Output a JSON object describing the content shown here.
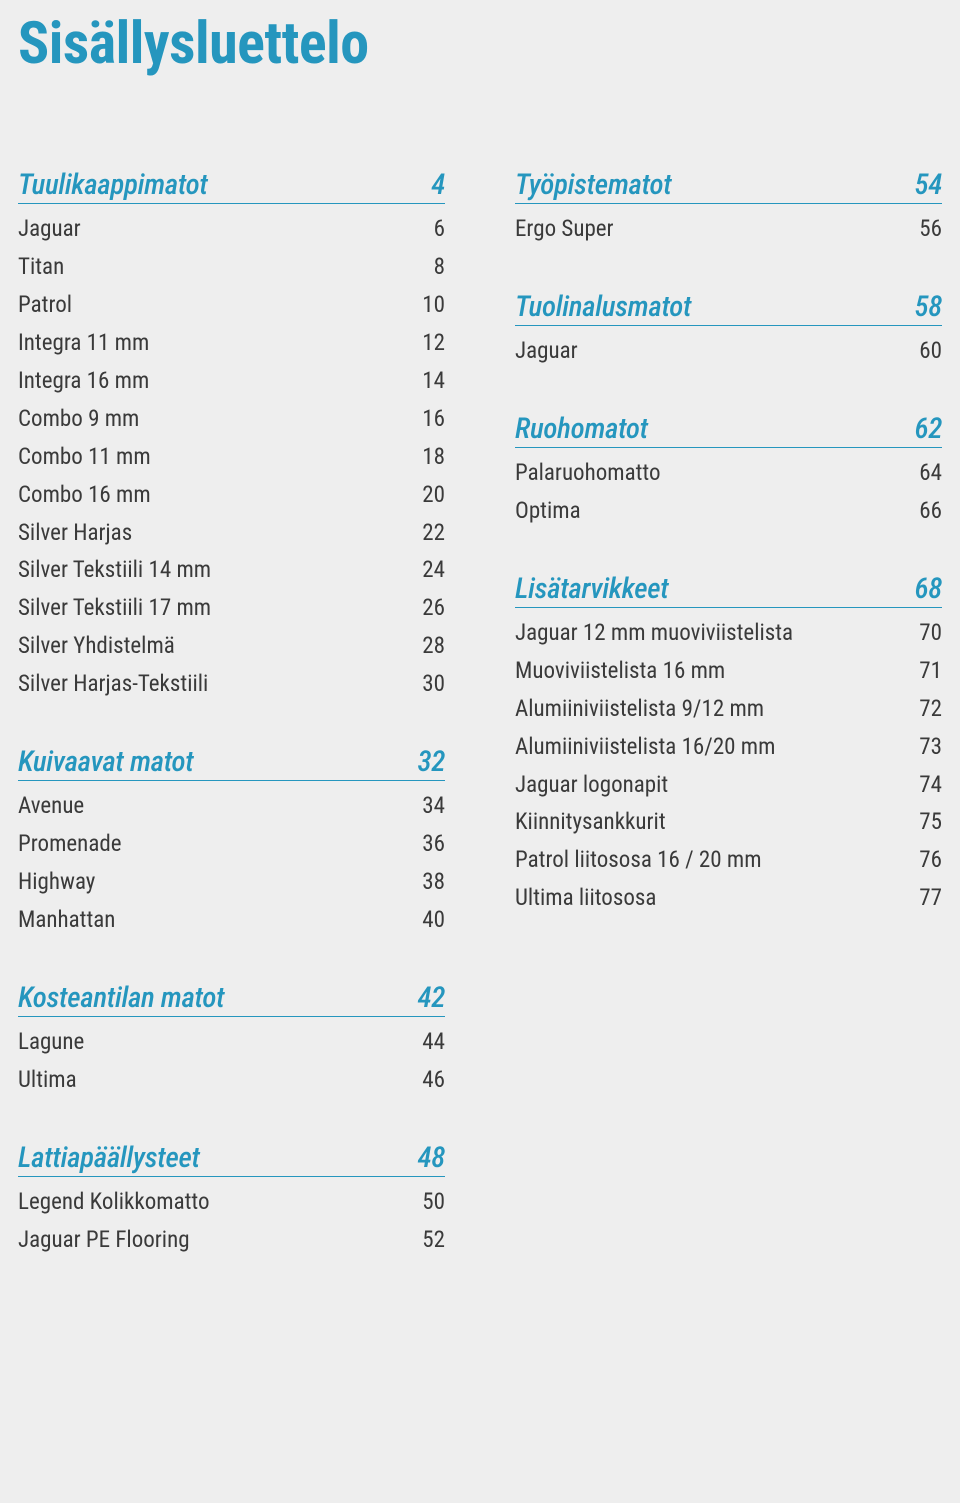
{
  "title": "Sisällysluettelo",
  "columns": [
    {
      "sections": [
        {
          "title": "Tuulikaappimatot",
          "page": "4",
          "entries": [
            {
              "label": "Jaguar",
              "page": "6"
            },
            {
              "label": "Titan",
              "page": "8"
            },
            {
              "label": "Patrol",
              "page": "10"
            },
            {
              "label": "Integra 11 mm",
              "page": "12"
            },
            {
              "label": "Integra 16 mm",
              "page": "14"
            },
            {
              "label": "Combo 9 mm",
              "page": "16"
            },
            {
              "label": "Combo 11 mm",
              "page": "18"
            },
            {
              "label": "Combo 16 mm",
              "page": "20"
            },
            {
              "label": "Silver Harjas",
              "page": "22"
            },
            {
              "label": "Silver Tekstiili 14 mm",
              "page": "24"
            },
            {
              "label": "Silver Tekstiili 17 mm",
              "page": "26"
            },
            {
              "label": "Silver Yhdistelmä",
              "page": "28"
            },
            {
              "label": "Silver Harjas-Tekstiili",
              "page": "30"
            }
          ]
        },
        {
          "title": "Kuivaavat matot",
          "page": "32",
          "entries": [
            {
              "label": "Avenue",
              "page": "34"
            },
            {
              "label": "Promenade",
              "page": "36"
            },
            {
              "label": "Highway",
              "page": "38"
            },
            {
              "label": "Manhattan",
              "page": "40"
            }
          ]
        },
        {
          "title": "Kosteantilan matot",
          "page": "42",
          "entries": [
            {
              "label": "Lagune",
              "page": "44"
            },
            {
              "label": "Ultima",
              "page": "46"
            }
          ]
        },
        {
          "title": "Lattiapäällysteet",
          "page": "48",
          "entries": [
            {
              "label": "Legend Kolikkomatto",
              "page": "50"
            },
            {
              "label": "Jaguar PE Flooring",
              "page": "52"
            }
          ]
        }
      ]
    },
    {
      "sections": [
        {
          "title": "Työpistematot",
          "page": "54",
          "entries": [
            {
              "label": "Ergo Super",
              "page": "56"
            }
          ]
        },
        {
          "title": "Tuolinalusmatot",
          "page": "58",
          "entries": [
            {
              "label": "Jaguar",
              "page": "60"
            }
          ]
        },
        {
          "title": "Ruohomatot",
          "page": "62",
          "entries": [
            {
              "label": "Palaruohomatto",
              "page": "64"
            },
            {
              "label": "Optima",
              "page": "66"
            }
          ]
        },
        {
          "title": "Lisätarvikkeet",
          "page": "68",
          "entries": [
            {
              "label": "Jaguar 12 mm muoviviistelista",
              "page": "70"
            },
            {
              "label": "Muoviviistelista 16 mm",
              "page": "71"
            },
            {
              "label": "Alumiiniviistelista 9/12 mm",
              "page": "72"
            },
            {
              "label": "Alumiiniviistelista 16/20 mm",
              "page": "73"
            },
            {
              "label": "Jaguar logonapit",
              "page": "74"
            },
            {
              "label": "Kiinnitysankkurit",
              "page": "75"
            },
            {
              "label": "Patrol liitososa 16 / 20 mm",
              "page": "76"
            },
            {
              "label": "Ultima liitososa",
              "page": "77"
            }
          ]
        }
      ]
    }
  ]
}
